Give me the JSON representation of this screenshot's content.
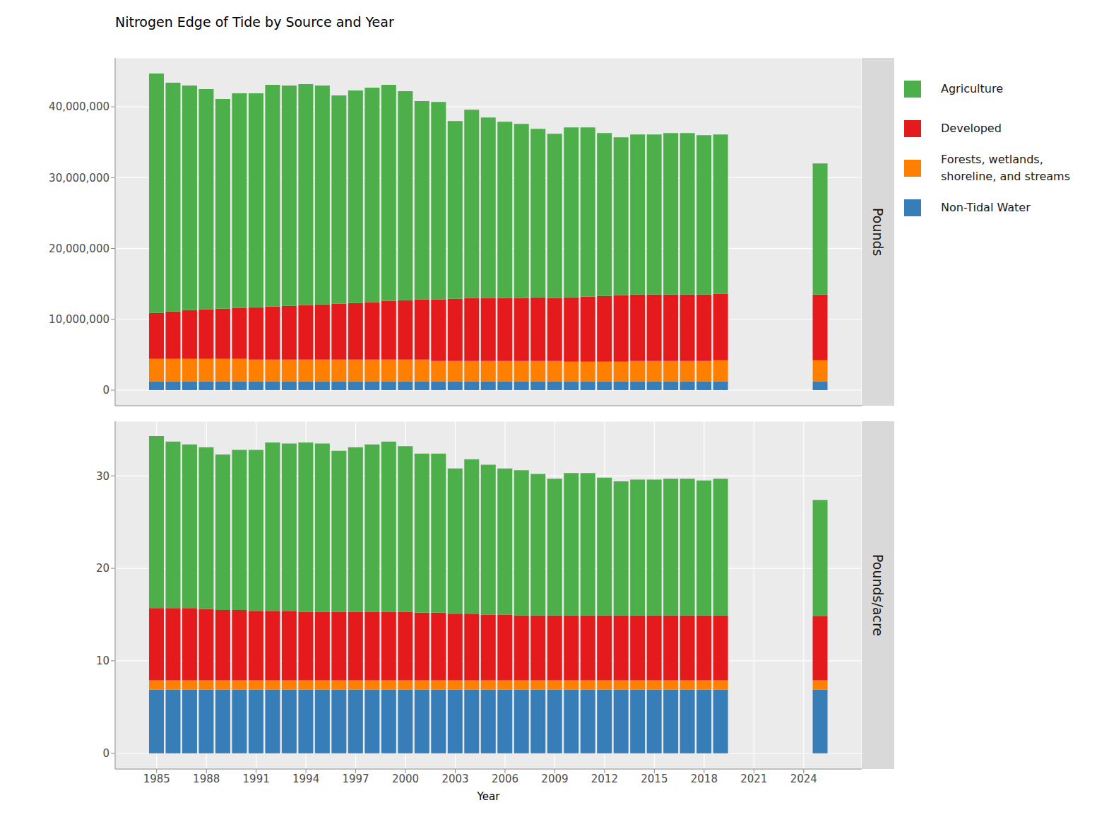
{
  "chart_data": [
    {
      "type": "bar",
      "title": "Nitrogen Edge of Tide by Source and Year",
      "y_label": "Pounds",
      "stacked": true,
      "grid": true,
      "legend": "right",
      "tick_labels": "y",
      "x": [
        1985,
        1986,
        1987,
        1988,
        1989,
        1990,
        1991,
        1992,
        1993,
        1994,
        1995,
        1996,
        1997,
        1998,
        1999,
        2000,
        2001,
        2002,
        2003,
        2004,
        2005,
        2006,
        2007,
        2008,
        2009,
        2010,
        2011,
        2012,
        2013,
        2014,
        2015,
        2016,
        2017,
        2018,
        2019,
        2025
      ],
      "xlim": [
        1982.5,
        2027.5
      ],
      "xticks": [
        1985,
        1988,
        1991,
        1994,
        1997,
        2000,
        2003,
        2006,
        2009,
        2012,
        2015,
        2018,
        2021,
        2024
      ],
      "ylim": [
        -2200000,
        46900000
      ],
      "yticks": [
        0,
        {
          "value": 10000000,
          "label": "10,000,000"
        },
        {
          "value": 20000000,
          "label": "20,000,000"
        },
        {
          "value": 30000000,
          "label": "30,000,000"
        },
        {
          "value": 40000000,
          "label": "40,000,000"
        }
      ],
      "series": [
        {
          "name": "Non-Tidal Water",
          "color": "#377eb8",
          "values": [
            1200000,
            1200000,
            1200000,
            1200000,
            1200000,
            1200000,
            1200000,
            1200000,
            1200000,
            1200000,
            1200000,
            1200000,
            1200000,
            1200000,
            1200000,
            1200000,
            1200000,
            1200000,
            1200000,
            1200000,
            1200000,
            1200000,
            1200000,
            1200000,
            1200000,
            1200000,
            1200000,
            1200000,
            1200000,
            1200000,
            1200000,
            1200000,
            1200000,
            1200000,
            1200000,
            1200000
          ]
        },
        {
          "name": "Forests, wetlands, shoreline, and streams",
          "color": "#ff7f00",
          "values": [
            3200000,
            3200000,
            3200000,
            3200000,
            3200000,
            3200000,
            3100000,
            3100000,
            3100000,
            3100000,
            3100000,
            3100000,
            3100000,
            3100000,
            3100000,
            3100000,
            3100000,
            2900000,
            2900000,
            2900000,
            2900000,
            2900000,
            2900000,
            2900000,
            2900000,
            2800000,
            2800000,
            2800000,
            2800000,
            2900000,
            2900000,
            2900000,
            2900000,
            2900000,
            3000000,
            3000000
          ]
        },
        {
          "name": "Developed",
          "color": "#e41a1c",
          "values": [
            6500000,
            6700000,
            6900000,
            7000000,
            7100000,
            7200000,
            7400000,
            7500000,
            7600000,
            7700000,
            7800000,
            7900000,
            8000000,
            8100000,
            8300000,
            8400000,
            8500000,
            8700000,
            8800000,
            8900000,
            8900000,
            8900000,
            8900000,
            9000000,
            8900000,
            9100000,
            9200000,
            9300000,
            9400000,
            9400000,
            9400000,
            9400000,
            9400000,
            9400000,
            9400000,
            9300000
          ]
        },
        {
          "name": "Agriculture",
          "color": "#4daf4a",
          "values": [
            33800000,
            32300000,
            31700000,
            31100000,
            29600000,
            30300000,
            30200000,
            31300000,
            31100000,
            31200000,
            30900000,
            29400000,
            30000000,
            30300000,
            30500000,
            29500000,
            28000000,
            27900000,
            25100000,
            26600000,
            25500000,
            24900000,
            24600000,
            23800000,
            23200000,
            24000000,
            23900000,
            23000000,
            22300000,
            22600000,
            22600000,
            22800000,
            22800000,
            22500000,
            22500000,
            18500000
          ]
        }
      ]
    },
    {
      "type": "bar",
      "y_label": "Pounds/acre",
      "x_label": "Year",
      "stacked": true,
      "grid": true,
      "tick_labels": true,
      "x": [
        1985,
        1986,
        1987,
        1988,
        1989,
        1990,
        1991,
        1992,
        1993,
        1994,
        1995,
        1996,
        1997,
        1998,
        1999,
        2000,
        2001,
        2002,
        2003,
        2004,
        2005,
        2006,
        2007,
        2008,
        2009,
        2010,
        2011,
        2012,
        2013,
        2014,
        2015,
        2016,
        2017,
        2018,
        2019,
        2025
      ],
      "xlim": [
        1982.5,
        2027.5
      ],
      "xticks": [
        1985,
        1988,
        1991,
        1994,
        1997,
        2000,
        2003,
        2006,
        2009,
        2012,
        2015,
        2018,
        2021,
        2024
      ],
      "ylim": [
        -1.7,
        35.9
      ],
      "yticks": [
        0,
        10,
        20,
        30
      ],
      "series": [
        {
          "name": "Non-Tidal Water",
          "color": "#377eb8",
          "values": [
            6.9,
            6.9,
            6.9,
            6.9,
            6.9,
            6.9,
            6.9,
            6.9,
            6.9,
            6.9,
            6.9,
            6.9,
            6.9,
            6.9,
            6.9,
            6.9,
            6.9,
            6.9,
            6.9,
            6.9,
            6.9,
            6.9,
            6.9,
            6.9,
            6.9,
            6.9,
            6.9,
            6.9,
            6.9,
            6.9,
            6.9,
            6.9,
            6.9,
            6.9,
            6.9,
            6.9
          ]
        },
        {
          "name": "Forests, wetlands, shoreline, and streams",
          "color": "#ff7f00",
          "values": [
            1.0,
            1.0,
            1.0,
            1.0,
            1.0,
            1.0,
            1.0,
            1.0,
            1.0,
            1.0,
            1.0,
            1.0,
            1.0,
            1.0,
            1.0,
            1.0,
            1.0,
            1.0,
            1.0,
            1.0,
            1.0,
            1.0,
            1.0,
            1.0,
            1.0,
            1.0,
            1.0,
            1.0,
            1.0,
            1.0,
            1.0,
            1.0,
            1.0,
            1.0,
            1.0,
            1.0
          ]
        },
        {
          "name": "Developed",
          "color": "#e41a1c",
          "values": [
            7.8,
            7.8,
            7.8,
            7.7,
            7.6,
            7.6,
            7.5,
            7.5,
            7.5,
            7.4,
            7.4,
            7.4,
            7.4,
            7.4,
            7.4,
            7.4,
            7.3,
            7.3,
            7.2,
            7.2,
            7.1,
            7.1,
            7.0,
            7.0,
            7.0,
            7.0,
            7.0,
            7.0,
            7.0,
            7.0,
            7.0,
            7.0,
            7.0,
            7.0,
            7.0,
            6.9
          ]
        },
        {
          "name": "Agriculture",
          "color": "#4daf4a",
          "values": [
            18.6,
            18.0,
            17.7,
            17.5,
            16.8,
            17.3,
            17.4,
            18.2,
            18.1,
            18.3,
            18.2,
            17.4,
            17.8,
            18.1,
            18.4,
            17.9,
            17.2,
            17.2,
            15.7,
            16.7,
            16.2,
            15.8,
            15.7,
            15.3,
            14.8,
            15.4,
            15.4,
            14.9,
            14.5,
            14.7,
            14.7,
            14.8,
            14.8,
            14.6,
            14.8,
            12.6
          ]
        }
      ]
    }
  ]
}
